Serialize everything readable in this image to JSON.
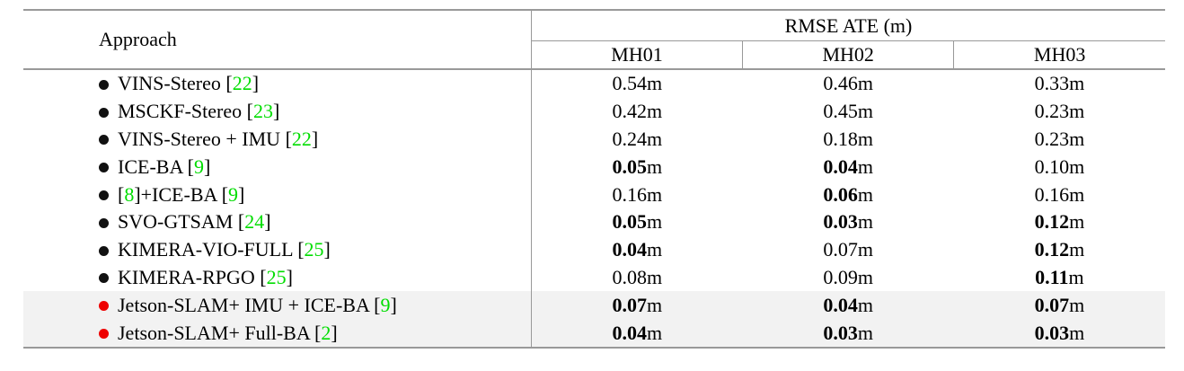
{
  "header": {
    "approach_label": "Approach",
    "group_label": "RMSE ATE (m)",
    "columns": [
      "MH01",
      "MH02",
      "MH03"
    ]
  },
  "colors": {
    "baseline_dot": "#111111",
    "ours_dot": "#ee0000",
    "citation": "#00dd00",
    "highlight_row": "#f2f2f2"
  },
  "rows": [
    {
      "pre": "",
      "pre_ref": "",
      "name": "VINS-Stereo",
      "ref": "22",
      "dot": "black",
      "highlight": false,
      "values": [
        {
          "b": "",
          "r": "0.54m"
        },
        {
          "b": "",
          "r": "0.46m"
        },
        {
          "b": "",
          "r": "0.33m"
        }
      ]
    },
    {
      "pre": "",
      "pre_ref": "",
      "name": "MSCKF-Stereo",
      "ref": "23",
      "dot": "black",
      "highlight": false,
      "values": [
        {
          "b": "",
          "r": "0.42m"
        },
        {
          "b": "",
          "r": "0.45m"
        },
        {
          "b": "",
          "r": "0.23m"
        }
      ]
    },
    {
      "pre": "",
      "pre_ref": "",
      "name": "VINS-Stereo + IMU",
      "ref": "22",
      "dot": "black",
      "highlight": false,
      "values": [
        {
          "b": "",
          "r": "0.24m"
        },
        {
          "b": "",
          "r": "0.18m"
        },
        {
          "b": "",
          "r": "0.23m"
        }
      ]
    },
    {
      "pre": "",
      "pre_ref": "",
      "name": "ICE-BA",
      "ref": "9",
      "dot": "black",
      "highlight": false,
      "values": [
        {
          "b": "0.05",
          "r": "m"
        },
        {
          "b": "0.04",
          "r": "m"
        },
        {
          "b": "",
          "r": "0.10m"
        }
      ]
    },
    {
      "pre": "[",
      "pre_ref": "8",
      "name": "]+ICE-BA",
      "ref": "9",
      "dot": "black",
      "highlight": false,
      "values": [
        {
          "b": "",
          "r": "0.16m"
        },
        {
          "b": "0.06",
          "r": "m"
        },
        {
          "b": "",
          "r": "0.16m"
        }
      ]
    },
    {
      "pre": "",
      "pre_ref": "",
      "name": "SVO-GTSAM",
      "ref": "24",
      "dot": "black",
      "highlight": false,
      "values": [
        {
          "b": "0.05",
          "r": "m"
        },
        {
          "b": "0.03",
          "r": "m"
        },
        {
          "b": "0.12",
          "r": "m"
        }
      ]
    },
    {
      "pre": "",
      "pre_ref": "",
      "name": "KIMERA-VIO-FULL",
      "ref": "25",
      "dot": "black",
      "highlight": false,
      "values": [
        {
          "b": "0.04",
          "r": "m"
        },
        {
          "b": "",
          "r": "0.07m"
        },
        {
          "b": "0.12",
          "r": "m"
        }
      ]
    },
    {
      "pre": "",
      "pre_ref": "",
      "name": "KIMERA-RPGO",
      "ref": "25",
      "dot": "black",
      "highlight": false,
      "values": [
        {
          "b": "",
          "r": "0.08m"
        },
        {
          "b": "",
          "r": "0.09m"
        },
        {
          "b": "0.11",
          "r": "m"
        }
      ]
    },
    {
      "pre": "",
      "pre_ref": "",
      "name": "Jetson-SLAM+ IMU + ICE-BA",
      "ref": "9",
      "dot": "red",
      "highlight": true,
      "values": [
        {
          "b": "0.07",
          "r": "m"
        },
        {
          "b": "0.04",
          "r": "m"
        },
        {
          "b": "0.07",
          "r": "m"
        }
      ]
    },
    {
      "pre": "",
      "pre_ref": "",
      "name": "Jetson-SLAM+ Full-BA",
      "ref": "2",
      "dot": "red",
      "highlight": true,
      "values": [
        {
          "b": "0.04",
          "r": "m"
        },
        {
          "b": "0.03",
          "r": "m"
        },
        {
          "b": "0.03",
          "r": "m"
        }
      ]
    }
  ]
}
